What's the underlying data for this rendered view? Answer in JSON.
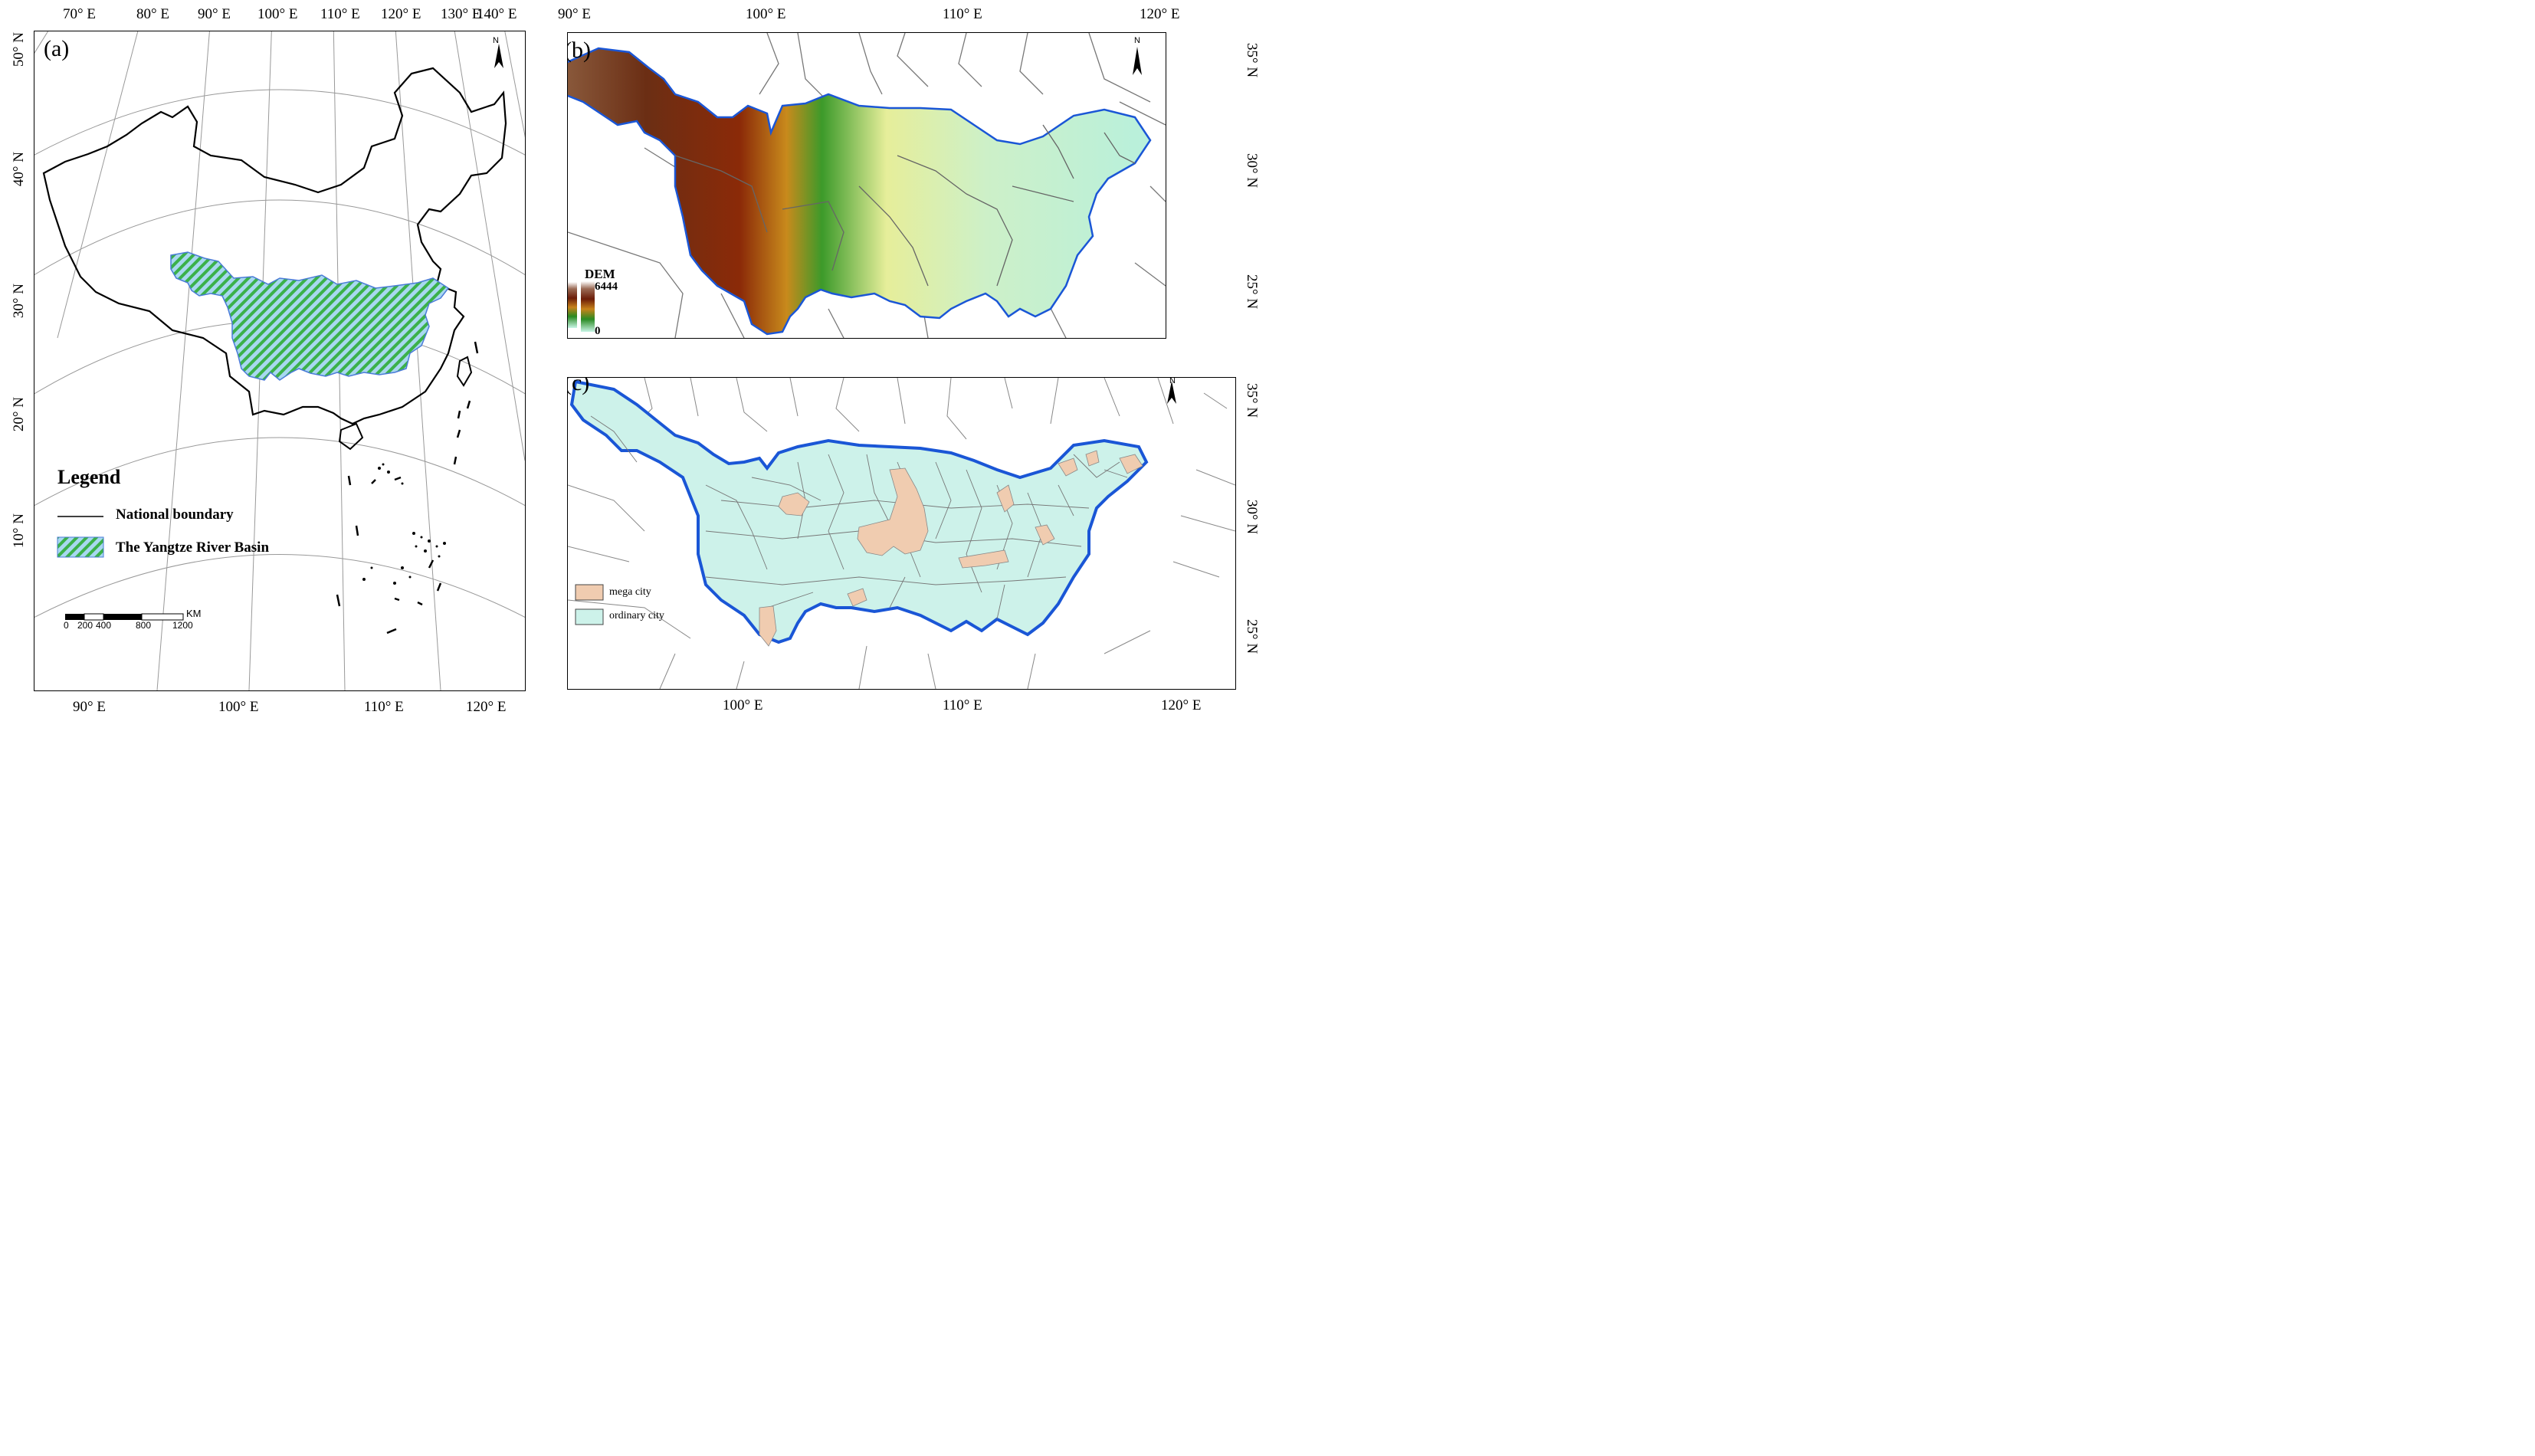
{
  "panel_a": {
    "label": "(a)",
    "top_ticks": [
      "70° E",
      "80° E",
      "90° E",
      "100° E",
      "110° E",
      "120° E",
      "130° E",
      "140° E"
    ],
    "bottom_ticks": [
      "90° E",
      "100° E",
      "110° E",
      "120° E"
    ],
    "left_ticks": [
      "50° N",
      "40° N",
      "30° N",
      "20° N",
      "10° N"
    ],
    "north_label": "N",
    "legend": {
      "title": "Legend",
      "items": [
        {
          "label": "National boundary"
        },
        {
          "label": "The Yangtze River Basin"
        }
      ]
    },
    "scale_bar": {
      "unit": "KM",
      "ticks": [
        "0",
        "200",
        "400",
        "800",
        "1200"
      ]
    }
  },
  "panel_b": {
    "label": "(b)",
    "top_ticks": [
      "90° E",
      "100° E",
      "110° E",
      "120° E"
    ],
    "right_ticks": [
      "35° N",
      "30° N",
      "25° N"
    ],
    "north_label": "N",
    "dem": {
      "title": "DEM",
      "max": "6444",
      "min": "0"
    }
  },
  "panel_c": {
    "label": "(c)",
    "bottom_ticks": [
      "100° E",
      "110° E",
      "120° E"
    ],
    "right_ticks": [
      "35° N",
      "30° N",
      "25° N"
    ],
    "north_label": "N",
    "legend": [
      {
        "label": "mega city",
        "color": "#f0ccb0"
      },
      {
        "label": "ordinary city",
        "color": "#cdf2ea"
      }
    ]
  },
  "colors": {
    "basin_fill": "#cdf2ea",
    "basin_border": "#1a56d6",
    "mega_city": "#f0ccb0",
    "hatch_green": "#3bb14a",
    "hatch_blue": "#9fd0f0"
  }
}
